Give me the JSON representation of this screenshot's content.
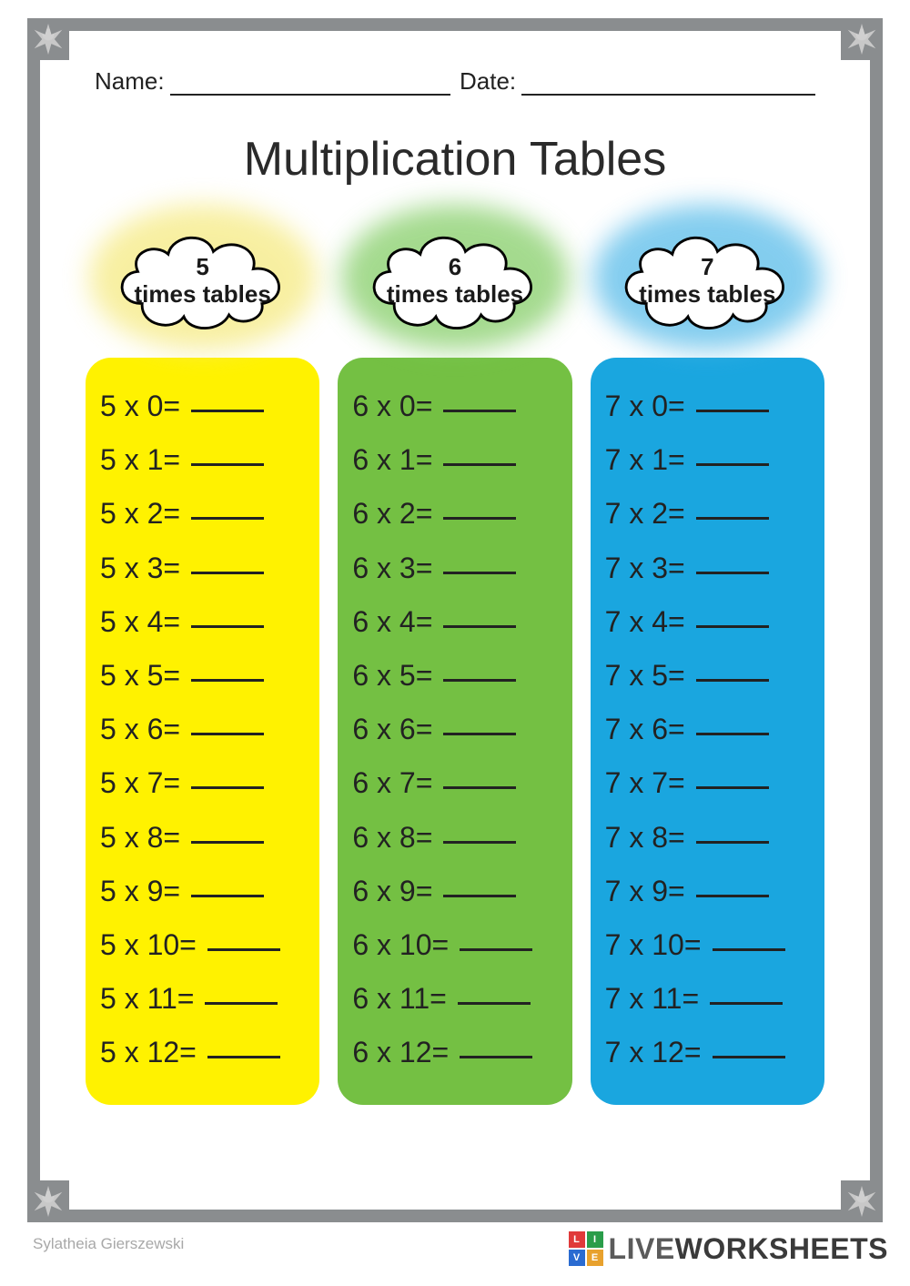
{
  "header": {
    "name_label": "Name:",
    "date_label": "Date:"
  },
  "title": "Multiplication Tables",
  "columns": [
    {
      "cloud_number": "5",
      "cloud_text": "times tables",
      "glow_color": "#f5e97a",
      "box_color": "#fff200",
      "multiplicand": 5,
      "multipliers": [
        0,
        1,
        2,
        3,
        4,
        5,
        6,
        7,
        8,
        9,
        10,
        11,
        12
      ]
    },
    {
      "cloud_number": "6",
      "cloud_text": "times tables",
      "glow_color": "#7ecb5f",
      "box_color": "#74c043",
      "multiplicand": 6,
      "multipliers": [
        0,
        1,
        2,
        3,
        4,
        5,
        6,
        7,
        8,
        9,
        10,
        11,
        12
      ]
    },
    {
      "cloud_number": "7",
      "cloud_text": "times tables",
      "glow_color": "#4fb8e8",
      "box_color": "#1aa6df",
      "multiplicand": 7,
      "multipliers": [
        0,
        1,
        2,
        3,
        4,
        5,
        6,
        7,
        8,
        9,
        10,
        11,
        12
      ]
    }
  ],
  "styling": {
    "frame_border_color": "#8a8d8f",
    "text_color": "#222222",
    "blank_underline_color": "#222222",
    "row_fontsize": 32,
    "title_fontsize": 52,
    "cloud_label_fontsize": 26
  },
  "author": "Sylatheia Gierszewski",
  "brand": {
    "logo_cells": [
      {
        "letter": "L",
        "bg": "#e03a3a"
      },
      {
        "letter": "I",
        "bg": "#2a9d4a"
      },
      {
        "letter": "V",
        "bg": "#2a6bd1"
      },
      {
        "letter": "E",
        "bg": "#e8a12d"
      }
    ],
    "text_light": "LIVE",
    "text_bold": "WORKSHEETS"
  }
}
